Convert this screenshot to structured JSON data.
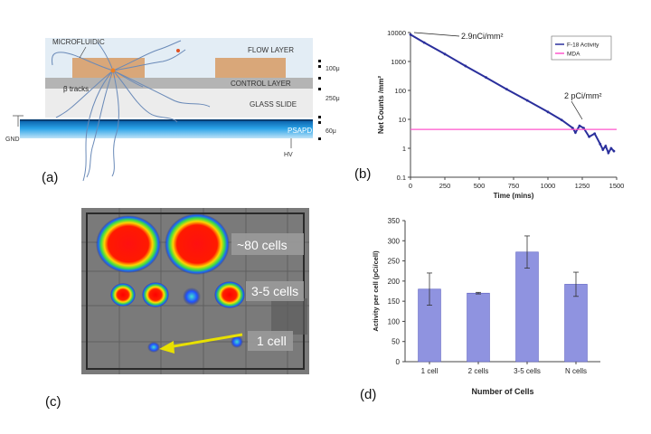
{
  "figure": {
    "panel_a": {
      "panel_label": "(a)",
      "labels": {
        "microfluidic": "MICROFLUIDIC",
        "flow_layer": "FLOW LAYER",
        "control_layer": "CONTROL LAYER",
        "glass_slide": "GLASS SLIDE",
        "psapd": "PSAPD",
        "beta_tracks": "β tracks",
        "gnd": "GND",
        "hv": "HV",
        "dim_top": "100μ",
        "dim_mid": "250μ",
        "dim_bot": "60μ"
      }
    },
    "panel_b": {
      "panel_label": "(b)",
      "annot_start": "2.9nCi/mm²",
      "annot_end": "2 pCi/mm²"
    },
    "panel_c": {
      "panel_label": "(c)",
      "label_80": "~80 cells",
      "label_35": "3-5 cells",
      "label_1": "1 cell"
    },
    "panel_d": {
      "panel_label": "(d)"
    }
  },
  "chart_data": [
    {
      "type": "line",
      "panel": "b",
      "title": "",
      "xlabel": "Time (mins)",
      "ylabel": "Net Counts /mm²",
      "xlim": [
        0,
        1500
      ],
      "ylim": [
        0.1,
        10000
      ],
      "yscale": "log",
      "xticks": [
        "0",
        "250",
        "500",
        "750",
        "1000",
        "1250",
        "1500"
      ],
      "yticks": [
        "10000",
        "1000",
        "100",
        "10",
        "1",
        "0.1"
      ],
      "legend": [
        "F-18 Activity",
        "MDA"
      ],
      "legend_position": "top-right",
      "series": [
        {
          "name": "F-18 Activity",
          "color": "#2a2f9c",
          "x": [
            0,
            100,
            250,
            400,
            550,
            700,
            850,
            1000,
            1100,
            1180,
            1200,
            1230,
            1260,
            1300,
            1340,
            1380,
            1400,
            1420,
            1440,
            1460,
            1480
          ],
          "y": [
            8500,
            4500,
            1800,
            700,
            280,
            110,
            45,
            18,
            9.5,
            5,
            3.5,
            6,
            5,
            2.5,
            3.2,
            1.4,
            0.9,
            1.2,
            0.7,
            1.0,
            0.8
          ]
        },
        {
          "name": "MDA",
          "color": "#ff55cc",
          "x": [
            0,
            1500
          ],
          "y": [
            4.5,
            4.5
          ]
        }
      ]
    },
    {
      "type": "bar",
      "panel": "d",
      "title": "",
      "xlabel": "Number of Cells",
      "ylabel": "Activity per cell (pCi/cell)",
      "categories": [
        "1 cell",
        "2 cells",
        "3-5 cells",
        "N cells"
      ],
      "values": [
        180,
        170,
        272,
        192
      ],
      "errors": [
        40,
        2,
        40,
        30
      ],
      "ylim": [
        0,
        350
      ],
      "yticks": [
        "0",
        "50",
        "100",
        "150",
        "200",
        "250",
        "300",
        "350"
      ],
      "color": "#8f93e0"
    }
  ],
  "colors": {
    "flow_layer": "#e3edf5",
    "channel_block": "#d9a779",
    "control_layer": "#b4b4b4",
    "glass": "#e8e8e8",
    "psapd": "#1a8ad6",
    "track": "#6a8ab8"
  }
}
